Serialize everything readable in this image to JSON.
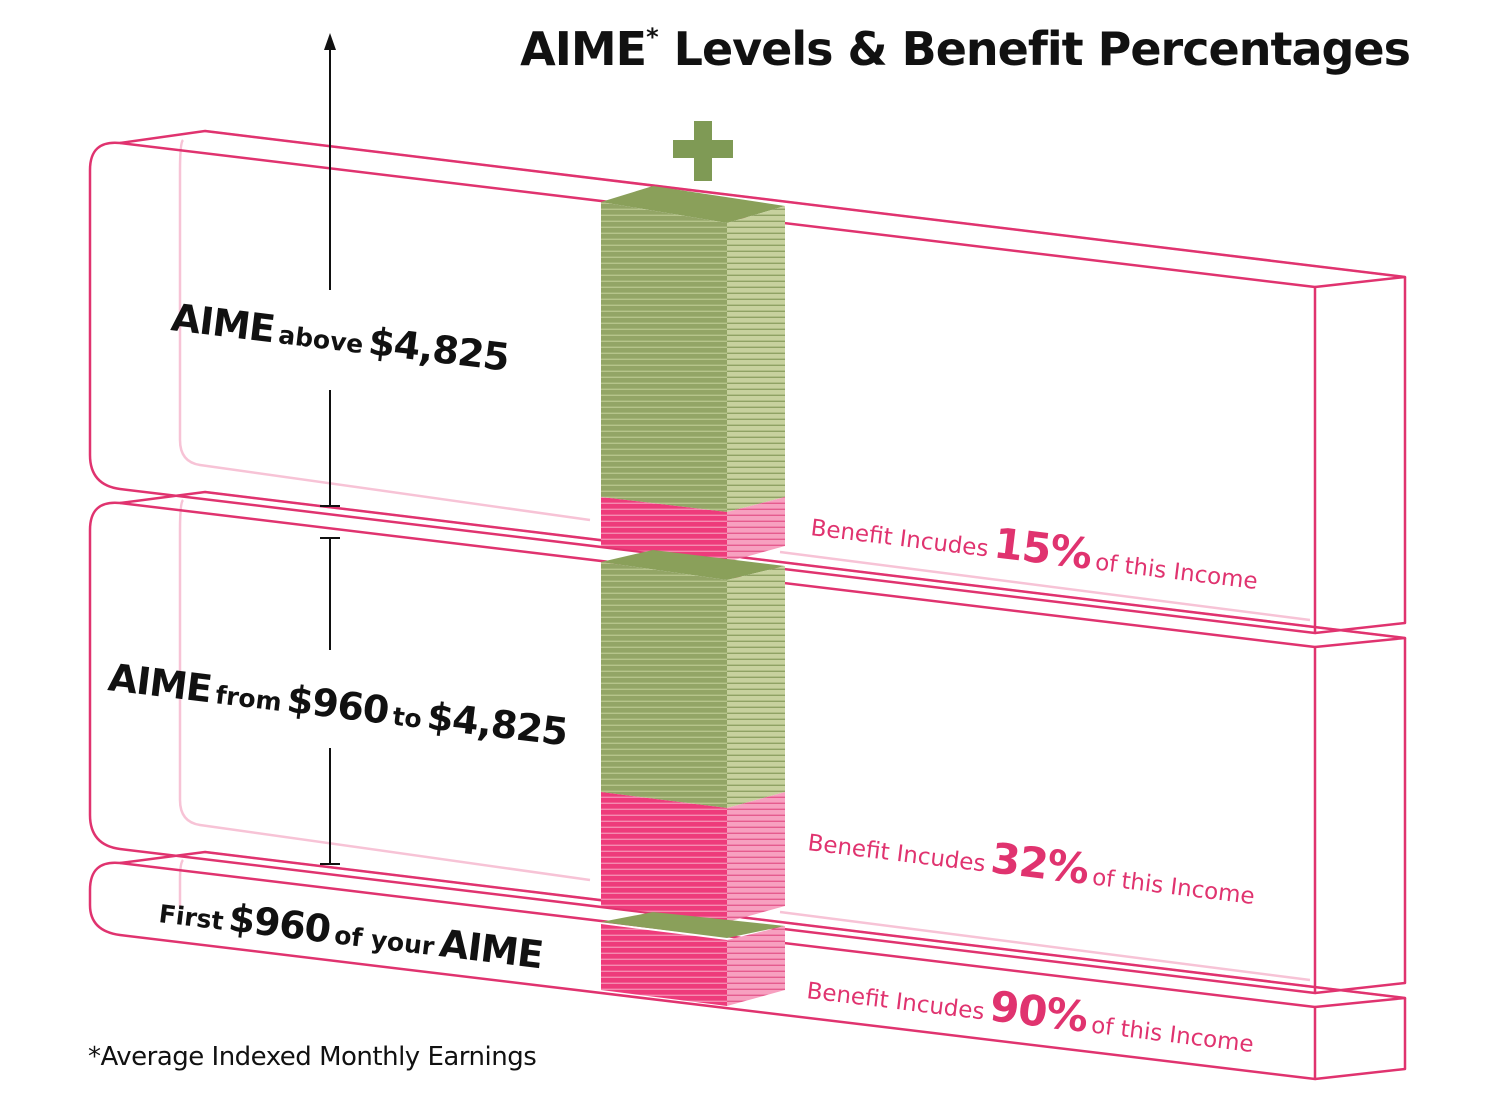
{
  "title": {
    "main": "AIME",
    "sup": "*",
    "rest": " Levels & Benefit Percentages"
  },
  "tiers": [
    {
      "label": {
        "lead": "AIME",
        "mid": "above",
        "tail": "$4,825"
      },
      "benefit": {
        "pre": "Benefit Incudes",
        "pct": "15%",
        "post": "of this Income"
      }
    },
    {
      "label": {
        "lead": "AIME",
        "mid": "from",
        "v1": "$960",
        "mid2": "to",
        "tail": "$4,825"
      },
      "benefit": {
        "pre": "Benefit Incudes",
        "pct": "32%",
        "post": "of this Income"
      }
    },
    {
      "label": {
        "pre": "First",
        "value": "$960",
        "mid": "of your",
        "tail": "AIME"
      },
      "benefit": {
        "pre": "Benefit Incudes",
        "pct": "90%",
        "post": "of this Income"
      }
    }
  ],
  "plus_icon": "plus-icon",
  "footnote": "*Average Indexed Monthly Earnings",
  "colors": {
    "band_outline": "#e0336f",
    "band_faint": "#f7c3d6",
    "green_front": "#93a566",
    "green_side": "#c7d19e",
    "green_top": "#8aa05a",
    "pink_front": "#ee3b7b",
    "pink_side": "#f7a0c0",
    "plus": "#7f9a55",
    "text": "#111111",
    "accent_text": "#e0336f"
  }
}
